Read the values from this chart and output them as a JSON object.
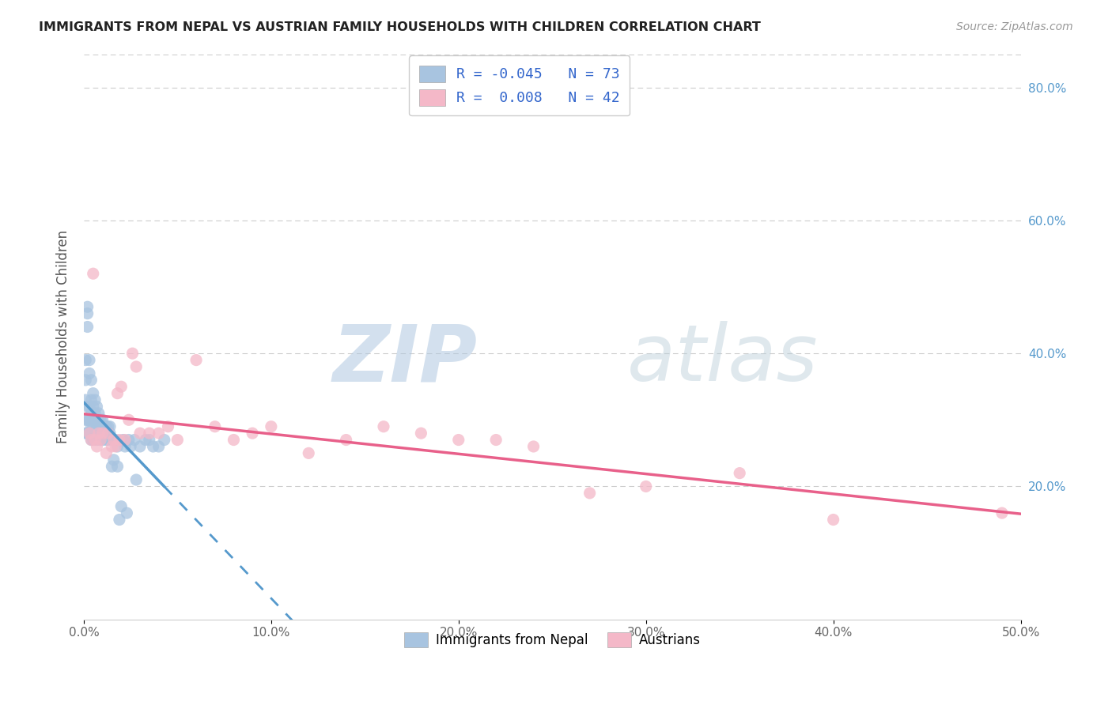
{
  "title": "IMMIGRANTS FROM NEPAL VS AUSTRIAN FAMILY HOUSEHOLDS WITH CHILDREN CORRELATION CHART",
  "source": "Source: ZipAtlas.com",
  "ylabel": "Family Households with Children",
  "xlim": [
    0.0,
    0.5
  ],
  "ylim": [
    0.0,
    0.85
  ],
  "nepal_R": "-0.045",
  "nepal_N": "73",
  "austrian_R": "0.008",
  "austrian_N": "42",
  "nepal_scatter_color": "#a8c4e0",
  "austrian_scatter_color": "#f4b8c8",
  "nepal_line_color": "#5599cc",
  "austrian_line_color": "#e8608a",
  "legend_box_color": "#a8c4e0",
  "legend_text_color": "#3366cc",
  "watermark_zip_color": "#c8d8e8",
  "watermark_atlas_color": "#b8c8d8",
  "nepal_scatter_x": [
    0.001,
    0.001,
    0.001,
    0.001,
    0.001,
    0.002,
    0.002,
    0.002,
    0.002,
    0.002,
    0.002,
    0.003,
    0.003,
    0.003,
    0.003,
    0.003,
    0.004,
    0.004,
    0.004,
    0.004,
    0.004,
    0.005,
    0.005,
    0.005,
    0.005,
    0.005,
    0.006,
    0.006,
    0.006,
    0.006,
    0.007,
    0.007,
    0.007,
    0.007,
    0.008,
    0.008,
    0.008,
    0.009,
    0.009,
    0.009,
    0.01,
    0.01,
    0.01,
    0.011,
    0.011,
    0.012,
    0.012,
    0.013,
    0.013,
    0.014,
    0.014,
    0.015,
    0.015,
    0.016,
    0.016,
    0.017,
    0.018,
    0.018,
    0.019,
    0.02,
    0.021,
    0.022,
    0.023,
    0.024,
    0.025,
    0.027,
    0.028,
    0.03,
    0.033,
    0.035,
    0.037,
    0.04,
    0.043
  ],
  "nepal_scatter_y": [
    0.39,
    0.36,
    0.33,
    0.3,
    0.28,
    0.47,
    0.46,
    0.44,
    0.32,
    0.3,
    0.28,
    0.39,
    0.37,
    0.32,
    0.3,
    0.28,
    0.36,
    0.33,
    0.31,
    0.29,
    0.27,
    0.34,
    0.32,
    0.3,
    0.29,
    0.27,
    0.33,
    0.31,
    0.3,
    0.28,
    0.32,
    0.3,
    0.29,
    0.27,
    0.31,
    0.3,
    0.28,
    0.3,
    0.29,
    0.27,
    0.3,
    0.29,
    0.27,
    0.29,
    0.28,
    0.29,
    0.27,
    0.29,
    0.27,
    0.29,
    0.28,
    0.27,
    0.23,
    0.27,
    0.24,
    0.27,
    0.26,
    0.23,
    0.15,
    0.17,
    0.27,
    0.26,
    0.16,
    0.27,
    0.26,
    0.27,
    0.21,
    0.26,
    0.27,
    0.27,
    0.26,
    0.26,
    0.27
  ],
  "austrian_scatter_x": [
    0.003,
    0.004,
    0.005,
    0.006,
    0.007,
    0.008,
    0.009,
    0.01,
    0.012,
    0.013,
    0.015,
    0.016,
    0.017,
    0.018,
    0.019,
    0.02,
    0.022,
    0.024,
    0.026,
    0.028,
    0.03,
    0.035,
    0.04,
    0.045,
    0.05,
    0.06,
    0.07,
    0.08,
    0.09,
    0.1,
    0.12,
    0.14,
    0.16,
    0.18,
    0.2,
    0.22,
    0.24,
    0.27,
    0.3,
    0.35,
    0.4,
    0.49
  ],
  "austrian_scatter_y": [
    0.28,
    0.27,
    0.52,
    0.27,
    0.26,
    0.28,
    0.27,
    0.28,
    0.25,
    0.28,
    0.26,
    0.27,
    0.26,
    0.34,
    0.27,
    0.35,
    0.27,
    0.3,
    0.4,
    0.38,
    0.28,
    0.28,
    0.28,
    0.29,
    0.27,
    0.39,
    0.29,
    0.27,
    0.28,
    0.29,
    0.25,
    0.27,
    0.29,
    0.28,
    0.27,
    0.27,
    0.26,
    0.19,
    0.2,
    0.22,
    0.15,
    0.16
  ]
}
